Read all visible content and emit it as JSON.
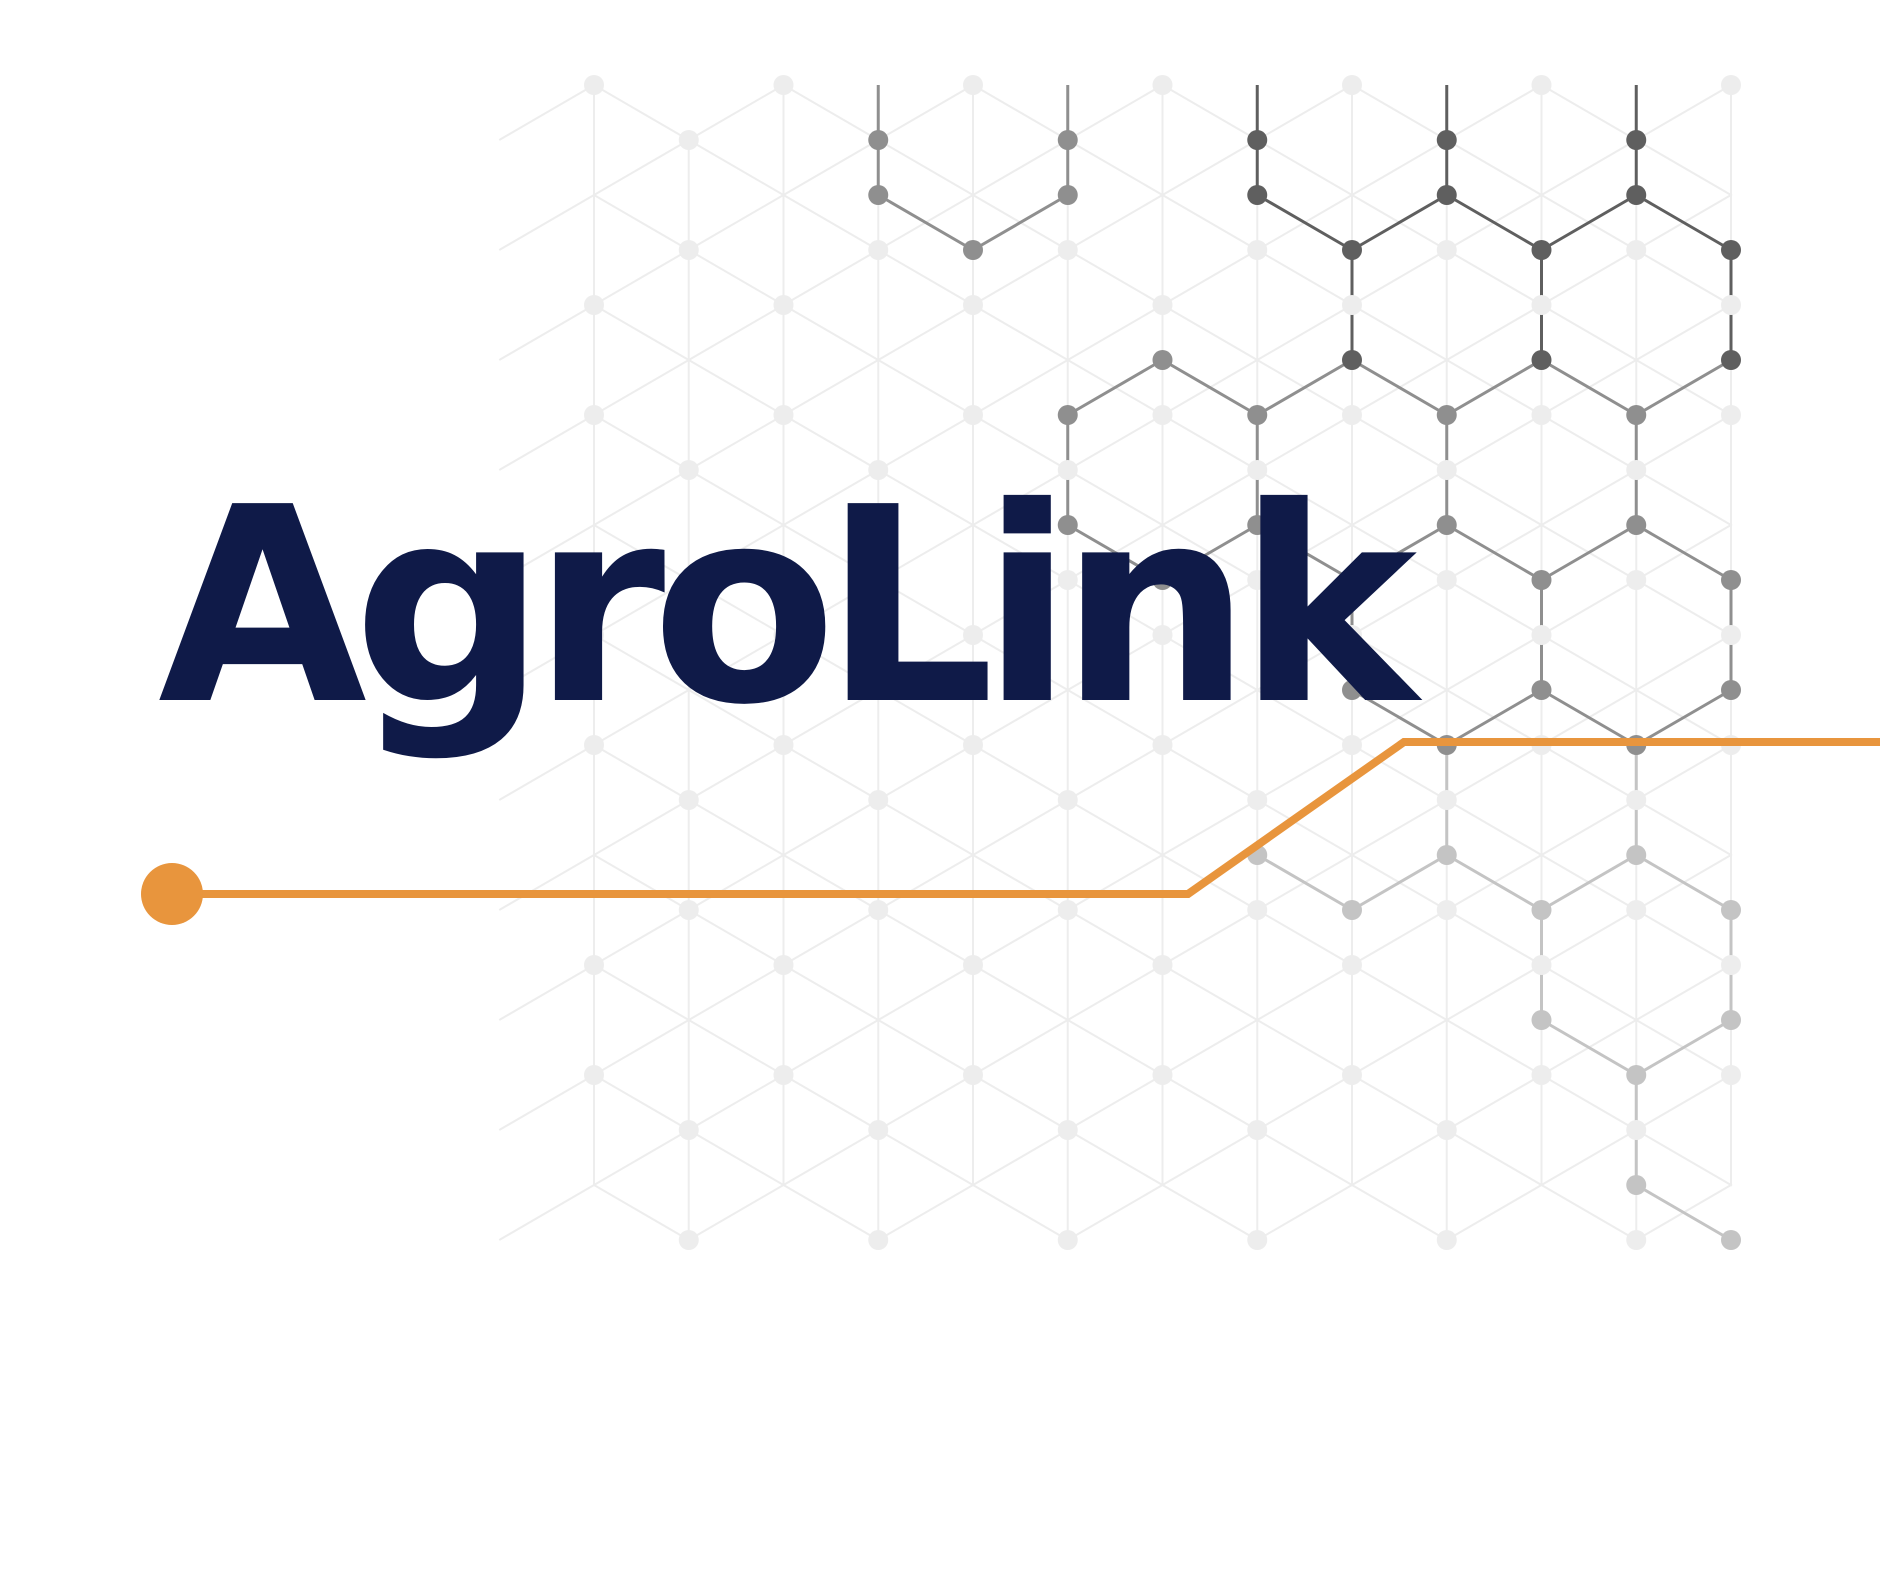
{
  "brand": {
    "name": "AgroLink"
  },
  "colors": {
    "title": "#0f1a48",
    "accent": "#e8953d",
    "network_dark": "#5f5f5f",
    "network_mid": "#8f8f8f",
    "network_light": "#c4c4c4",
    "network_faint": "#ededed",
    "background": "#ffffff"
  },
  "graphics": {
    "network": "hexagonal-molecule-network",
    "connector": "orange-circuit-line"
  }
}
